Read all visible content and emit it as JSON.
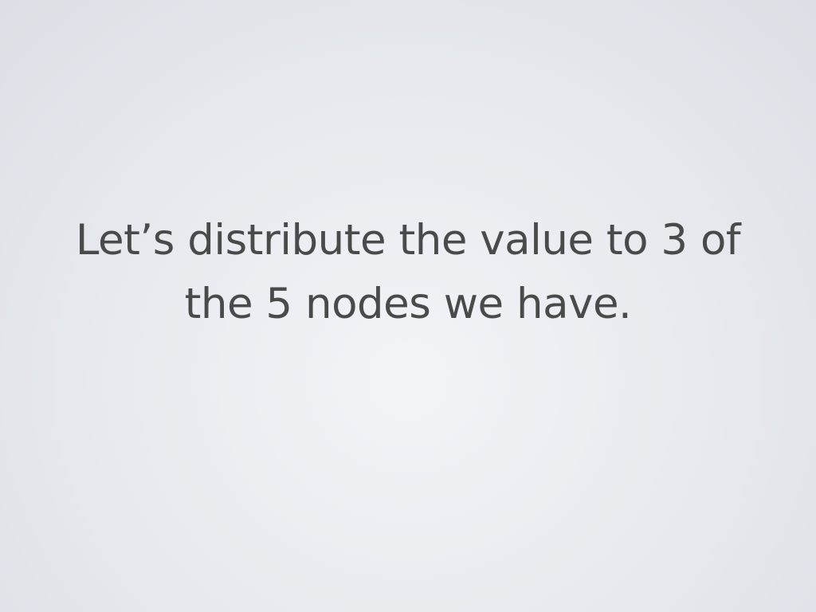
{
  "slide": {
    "lines": [
      "Let’s distribute the value to 3 of",
      "the 5 nodes we have."
    ]
  },
  "colors": {
    "text": "#4a4a4a",
    "background_center": "#f3f4f8",
    "background_edge": "#dcdfe5"
  }
}
